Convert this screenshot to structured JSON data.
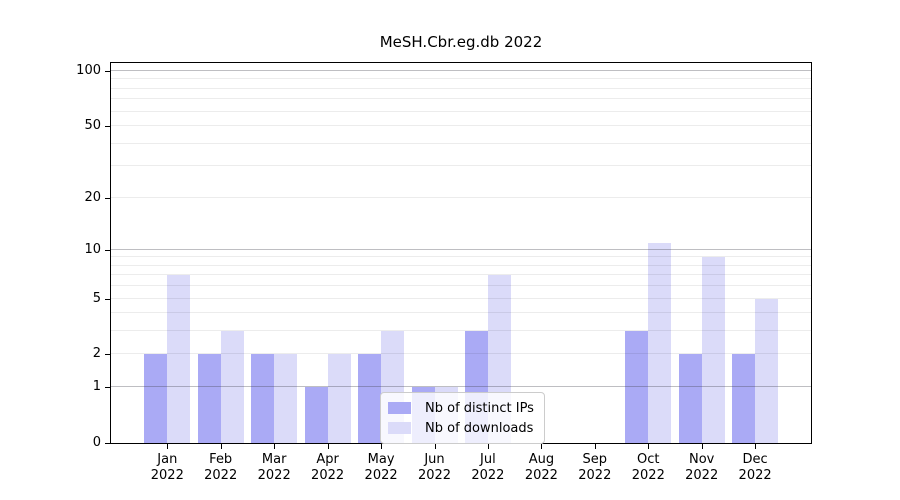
{
  "chart_data": {
    "type": "bar",
    "title": "MeSH.Cbr.eg.db 2022",
    "categories": [
      "Jan",
      "Feb",
      "Mar",
      "Apr",
      "May",
      "Jun",
      "Jul",
      "Aug",
      "Sep",
      "Oct",
      "Nov",
      "Dec"
    ],
    "category_year": "2022",
    "series": [
      {
        "name": "Nb of distinct IPs",
        "color": "#aaaaf5",
        "values": [
          2,
          2,
          2,
          1,
          2,
          1,
          3,
          0,
          0,
          3,
          2,
          2
        ]
      },
      {
        "name": "Nb of downloads",
        "color": "#dbdbf9",
        "values": [
          7,
          3,
          2,
          2,
          3,
          1,
          7,
          0,
          0,
          11,
          9,
          5
        ]
      }
    ],
    "y_scale": "log1p",
    "y_ticks": [
      0,
      1,
      2,
      5,
      10,
      20,
      50,
      100
    ],
    "y_minor_gridlines": [
      2,
      3,
      4,
      5,
      6,
      7,
      8,
      9,
      20,
      30,
      40,
      50,
      60,
      70,
      80,
      90
    ],
    "y_major_gridlines": [
      1,
      10,
      100
    ],
    "ylim": [
      0,
      100
    ],
    "grid": true,
    "legend_position": "lower-center",
    "axis_color": "#000000",
    "background_color": "#ffffff"
  }
}
